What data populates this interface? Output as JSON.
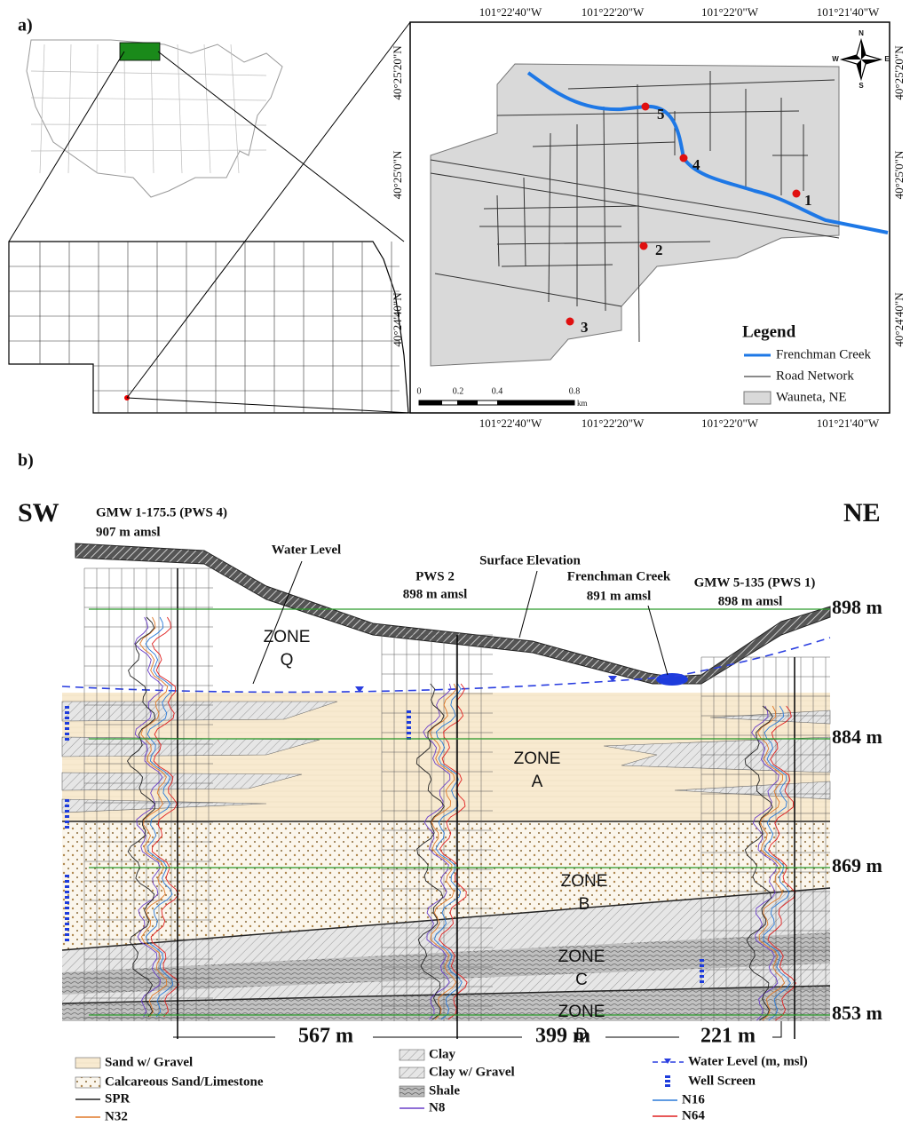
{
  "panel_a": {
    "label": "a)",
    "lon_labels": [
      "101°22'40\"W",
      "101°22'20\"W",
      "101°22'0\"W",
      "101°21'40\"W"
    ],
    "lat_labels": [
      "40°25'20\"N",
      "40°25'0\"N",
      "40°24'40\"N"
    ],
    "wells": [
      "1",
      "2",
      "3",
      "4",
      "5"
    ],
    "compass": [
      "N",
      "E",
      "S",
      "W"
    ],
    "scale": {
      "ticks": [
        "0",
        "0.2",
        "0.4",
        "0.8"
      ],
      "unit": "km"
    },
    "legend": {
      "title": "Legend",
      "items": [
        "Frenchman Creek",
        "Road Network",
        "Wauneta, NE"
      ]
    }
  },
  "panel_b": {
    "label": "b)",
    "left": "SW",
    "right": "NE",
    "annotations": [
      "GMW 1-175.5 (PWS 4)",
      "907 m amsl",
      "Water Level",
      "Surface Elevation",
      "PWS 2",
      "898 m amsl",
      "Frenchman Creek",
      "891 m amsl",
      "GMW 5-135 (PWS 1)",
      "898 m amsl"
    ],
    "elevations": [
      "898 m",
      "884 m",
      "869 m",
      "853 m"
    ],
    "zones": [
      {
        "word": "ZONE",
        "letter": "Q"
      },
      {
        "word": "ZONE",
        "letter": "A"
      },
      {
        "word": "ZONE",
        "letter": "B"
      },
      {
        "word": "ZONE",
        "letter": "C"
      },
      {
        "word": "ZONE",
        "letter": "D"
      }
    ],
    "distances": [
      "567 m",
      "399 m",
      "221 m"
    ],
    "legend": [
      "Sand w/ Gravel",
      "Calcareous Sand/Limestone",
      "SPR",
      "N32",
      "Clay",
      "Clay w/ Gravel",
      "Shale",
      "N8",
      "Water Level (m, msl)",
      "Well Screen",
      "N16",
      "N64"
    ]
  }
}
